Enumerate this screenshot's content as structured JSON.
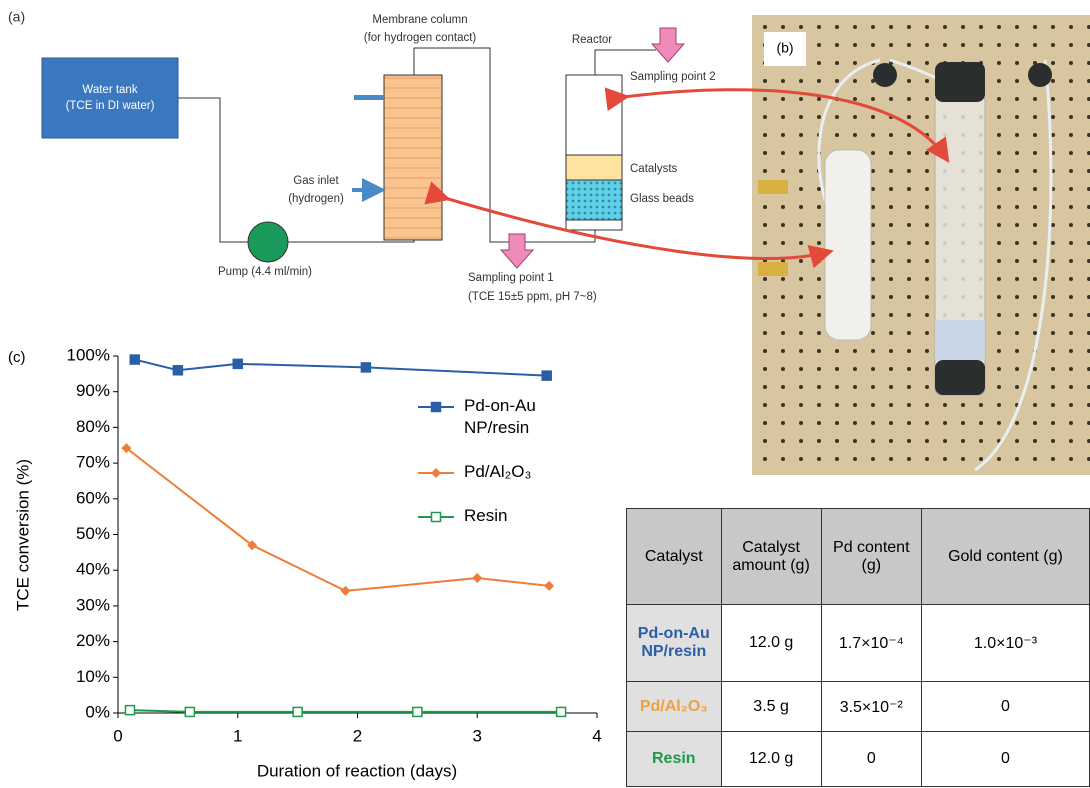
{
  "diagram": {
    "panel_label": "(a)",
    "water_tank": [
      "Water tank",
      "(TCE in DI water)"
    ],
    "membrane_column": [
      "Membrane column",
      "(for hydrogen contact)"
    ],
    "gas_inlet": [
      "Gas inlet",
      "(hydrogen)"
    ],
    "pump": "Pump (4.4 ml/min)",
    "reactor": "Reactor",
    "catalysts": "Catalysts",
    "glass_beads": "Glass beads",
    "sampling_point_2": "Sampling point 2",
    "sampling_point_1": [
      "Sampling point 1",
      "(TCE 15±5 ppm, pH 7~8)"
    ]
  },
  "photo": {
    "panel_label": "(b)"
  },
  "chart_data": {
    "type": "line",
    "panel_label": "(c)",
    "x_label": "Duration of reaction (days)",
    "y_label": "TCE conversion (%)",
    "xlim": [
      0,
      4
    ],
    "xticks": [
      0,
      1,
      2,
      3,
      4
    ],
    "ylim": [
      0,
      100
    ],
    "yticks": [
      {
        "value": 0,
        "label": "0%"
      },
      {
        "value": 10,
        "label": "10%"
      },
      {
        "value": 20,
        "label": "20%"
      },
      {
        "value": 30,
        "label": "30%"
      },
      {
        "value": 40,
        "label": "40%"
      },
      {
        "value": 50,
        "label": "50%"
      },
      {
        "value": 60,
        "label": "60%"
      },
      {
        "value": 70,
        "label": "70%"
      },
      {
        "value": 80,
        "label": "80%"
      },
      {
        "value": 90,
        "label": "90%"
      },
      {
        "value": 100,
        "label": "100%"
      }
    ],
    "series": [
      {
        "name": "Pd-on-Au NP/resin",
        "color": "#2a5fa8",
        "marker": "square",
        "x": [
          0.14,
          0.5,
          1.0,
          2.07,
          3.58
        ],
        "values": [
          99,
          96,
          97.8,
          96.8,
          94.5
        ]
      },
      {
        "name": "Pd/Al₂O₃",
        "color": "#ee7d3a",
        "marker": "diamond",
        "x": [
          0.07,
          1.12,
          1.9,
          3.0,
          3.6
        ],
        "values": [
          74.2,
          47,
          34.2,
          37.8,
          35.6
        ]
      },
      {
        "name": "Resin",
        "color": "#1f9a4a",
        "marker": "hollow-square",
        "x": [
          0.1,
          0.6,
          1.5,
          2.5,
          3.7
        ],
        "values": [
          0.8,
          0.3,
          0.3,
          0.3,
          0.3
        ]
      }
    ]
  },
  "table": {
    "header": [
      "Catalyst",
      "Catalyst amount (g)",
      "Pd content (g)",
      "Gold content (g)"
    ],
    "rows": [
      [
        "Pd-on-Au NP/resin",
        "12.0 g",
        "1.7×10⁻⁴",
        "1.0×10⁻³"
      ],
      [
        "Pd/Al₂O₃",
        "3.5 g",
        "3.5×10⁻²",
        "0"
      ],
      [
        "Resin",
        "12.0 g",
        "0",
        "0"
      ]
    ]
  }
}
